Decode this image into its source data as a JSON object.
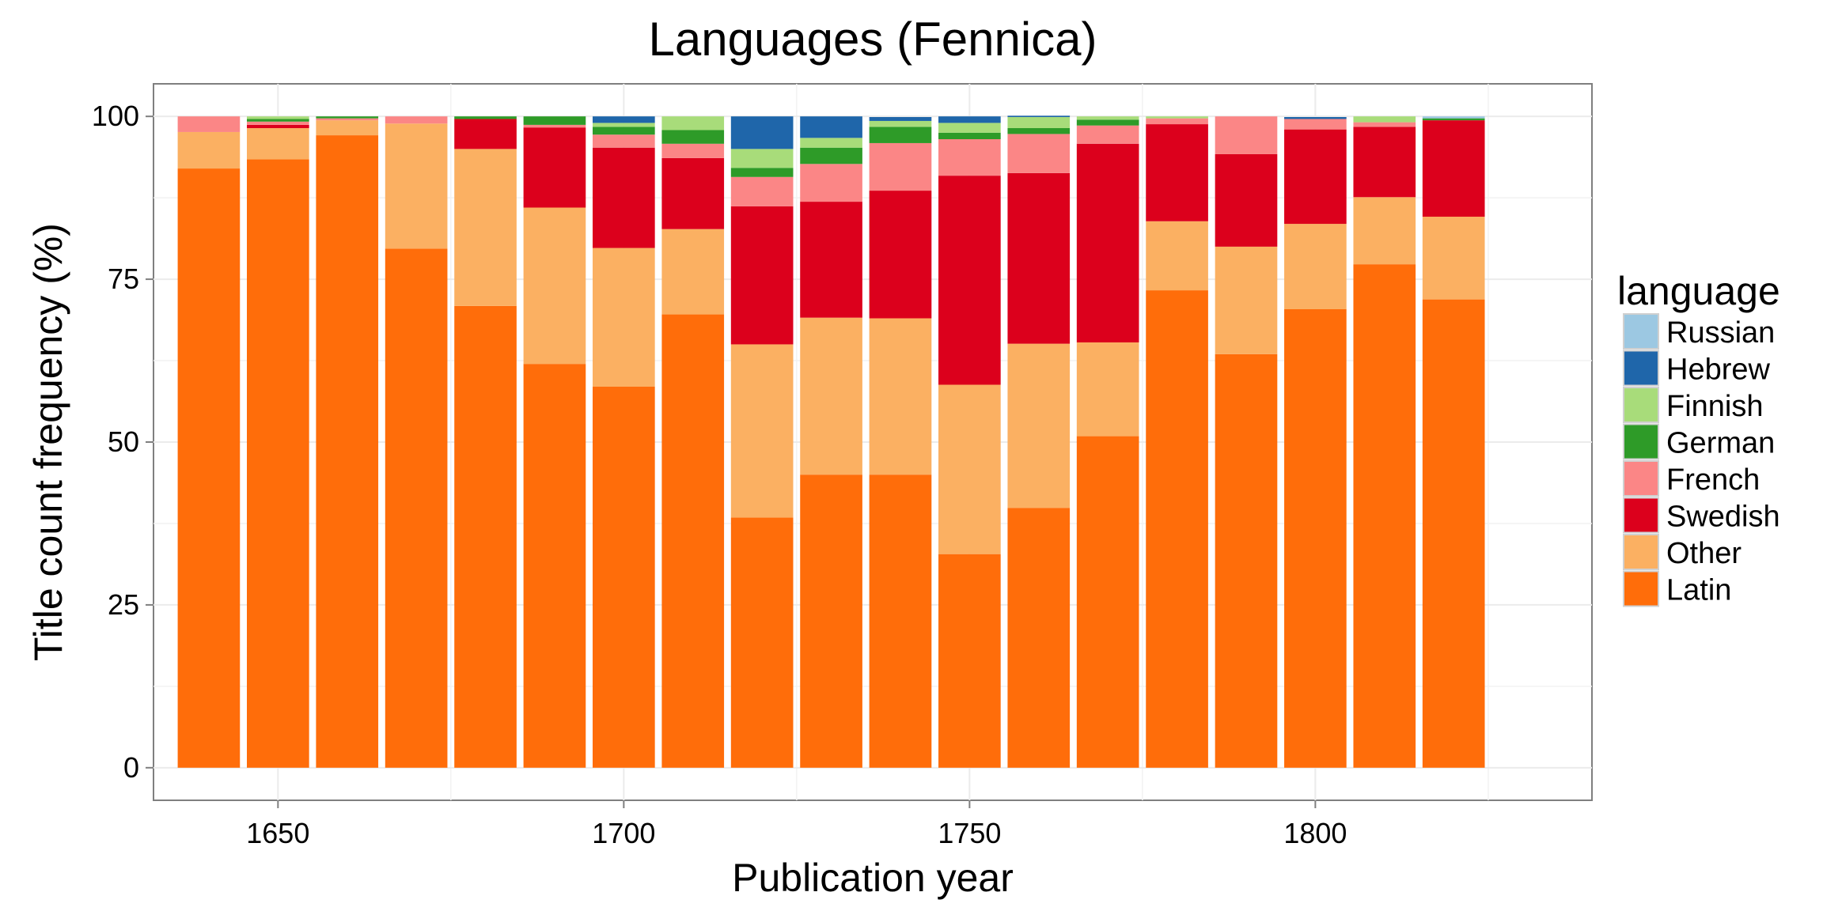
{
  "chart_data": {
    "type": "bar",
    "stacked": true,
    "title": "Languages (Fennica)",
    "xlabel": "Publication year",
    "ylabel": "Title count frequency (%)",
    "xlim": [
      1632,
      1840
    ],
    "ylim": [
      -5,
      105
    ],
    "x_ticks": [
      1650,
      1700,
      1750,
      1800
    ],
    "y_ticks": [
      0,
      25,
      50,
      75,
      100
    ],
    "grid": true,
    "legend_position": "right",
    "legend_title": "language",
    "legend_order": [
      "Russian",
      "Hebrew",
      "Finnish",
      "German",
      "French",
      "Swedish",
      "Other",
      "Latin"
    ],
    "bar_width_years": 9,
    "x": [
      1640,
      1650,
      1660,
      1670,
      1680,
      1690,
      1700,
      1710,
      1720,
      1730,
      1740,
      1750,
      1760,
      1770,
      1780,
      1790,
      1800,
      1810,
      1820
    ],
    "series": [
      {
        "name": "Latin",
        "color": "#FF6D0A",
        "values": [
          92,
          93.4,
          97.1,
          79.7,
          70.9,
          62,
          58.5,
          69.6,
          38.4,
          45,
          45,
          32.8,
          39.9,
          50.9,
          73.3,
          63.5,
          70.4,
          77.3,
          71.9
        ]
      },
      {
        "name": "Other",
        "color": "#FBB062",
        "values": [
          5.6,
          4.8,
          2.3,
          19.2,
          24.1,
          24,
          21.3,
          13.1,
          26.6,
          24.1,
          24,
          26,
          25.2,
          14.4,
          10.6,
          16.5,
          13.1,
          10.3,
          12.7
        ]
      },
      {
        "name": "Swedish",
        "color": "#DC001C",
        "values": [
          0,
          0.5,
          0,
          0,
          4.6,
          12.3,
          15.4,
          10.9,
          21.2,
          17.8,
          19.6,
          32.1,
          26.2,
          30.5,
          14.9,
          14.2,
          14.5,
          10.8,
          14.8
        ]
      },
      {
        "name": "French",
        "color": "#FB8686",
        "values": [
          2.4,
          0.5,
          0.3,
          1.1,
          0,
          0.4,
          2,
          2.2,
          4.5,
          5.8,
          7.3,
          5.6,
          6,
          2.8,
          0.9,
          5.8,
          1.6,
          0.7,
          0
        ]
      },
      {
        "name": "German",
        "color": "#2E9B28",
        "values": [
          0,
          0.4,
          0.3,
          0,
          0.4,
          1.3,
          1.2,
          2.1,
          1.4,
          2.5,
          2.5,
          1,
          0.9,
          0.9,
          0,
          0,
          0,
          0,
          0.3
        ]
      },
      {
        "name": "Finnish",
        "color": "#A8DC7A",
        "values": [
          0,
          0.4,
          0,
          0,
          0,
          0,
          0.6,
          2.1,
          2.9,
          1.5,
          0.9,
          1.5,
          1.7,
          0.5,
          0.3,
          0,
          0,
          0.9,
          0
        ]
      },
      {
        "name": "Hebrew",
        "color": "#1F66AA",
        "values": [
          0,
          0,
          0,
          0,
          0,
          0,
          1,
          0,
          5,
          3.3,
          0.6,
          1,
          0.2,
          0,
          0,
          0,
          0.3,
          0,
          0
        ]
      },
      {
        "name": "Russian",
        "color": "#9CC8E2",
        "values": [
          0,
          0,
          0,
          0,
          0,
          0,
          0,
          0,
          0,
          0,
          0,
          0,
          0,
          0,
          0,
          0,
          0,
          0,
          0.3
        ]
      }
    ]
  }
}
